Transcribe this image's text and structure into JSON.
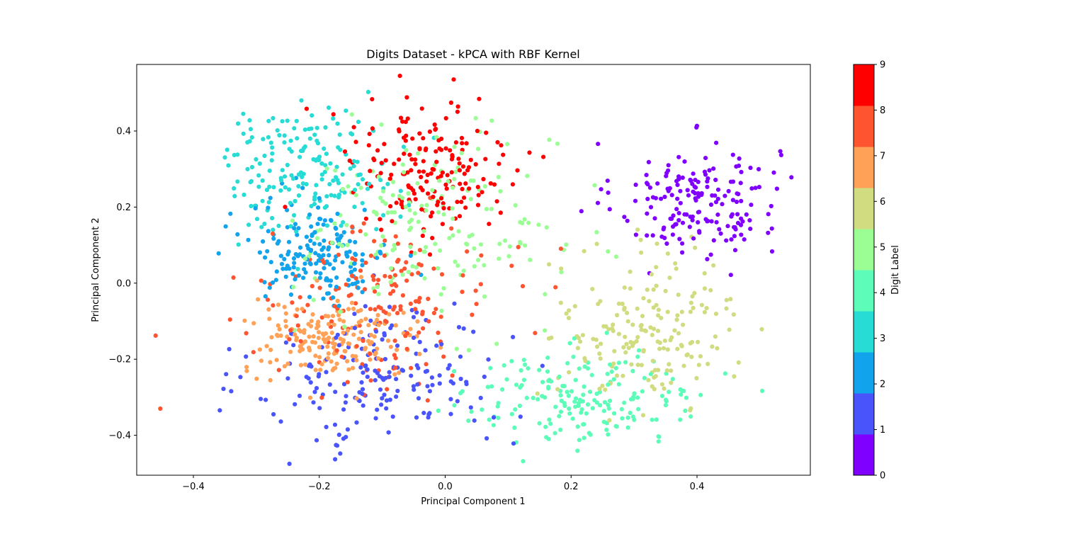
{
  "chart_data": {
    "type": "scatter",
    "title": "Digits Dataset - kPCA with RBF Kernel",
    "xlabel": "Principal Component 1",
    "ylabel": "Principal Component 2",
    "xlim": [
      -0.49,
      0.58
    ],
    "ylim": [
      -0.505,
      0.575
    ],
    "xticks": [
      -0.4,
      -0.2,
      0.0,
      0.2,
      0.4
    ],
    "xtick_labels": [
      "−0.4",
      "−0.2",
      "0.0",
      "0.2",
      "0.4"
    ],
    "yticks": [
      -0.4,
      -0.2,
      0.0,
      0.2,
      0.4
    ],
    "ytick_labels": [
      "−0.4",
      "−0.2",
      "0.0",
      "0.2",
      "0.4"
    ],
    "grid": false,
    "colorbar": {
      "label": "Digit Label",
      "ticks": [
        0,
        1,
        2,
        3,
        4,
        5,
        6,
        7,
        8,
        9
      ],
      "tick_labels": [
        "0",
        "1",
        "2",
        "3",
        "4",
        "5",
        "6",
        "7",
        "8",
        "9"
      ],
      "range": [
        0,
        9
      ],
      "colors": [
        "#8000ff",
        "#4a54fb",
        "#11a3ec",
        "#26dcd5",
        "#5dfcb8",
        "#9afe94",
        "#d1dc80",
        "#ffa257",
        "#ff5430",
        "#ff0000"
      ]
    },
    "clusters": [
      {
        "label": 0,
        "center": [
          0.4,
          0.22
        ],
        "spread": [
          0.065,
          0.075
        ],
        "count": 180
      },
      {
        "label": 1,
        "center": [
          -0.1,
          -0.25
        ],
        "spread": [
          0.1,
          0.1
        ],
        "count": 182
      },
      {
        "label": 2,
        "center": [
          -0.2,
          0.08
        ],
        "spread": [
          0.055,
          0.065
        ],
        "count": 177
      },
      {
        "label": 3,
        "center": [
          -0.22,
          0.3
        ],
        "spread": [
          0.07,
          0.08
        ],
        "count": 183
      },
      {
        "label": 4,
        "center": [
          0.22,
          -0.3
        ],
        "spread": [
          0.1,
          0.06
        ],
        "count": 181
      },
      {
        "label": 5,
        "center": [
          -0.02,
          0.15
        ],
        "spread": [
          0.1,
          0.12
        ],
        "count": 182
      },
      {
        "label": 6,
        "center": [
          0.32,
          -0.12
        ],
        "spread": [
          0.07,
          0.1
        ],
        "count": 181
      },
      {
        "label": 7,
        "center": [
          -0.18,
          -0.15
        ],
        "spread": [
          0.07,
          0.05
        ],
        "count": 179
      },
      {
        "label": 8,
        "center": [
          -0.1,
          -0.05
        ],
        "spread": [
          0.09,
          0.1
        ],
        "count": 174
      },
      {
        "label": 9,
        "center": [
          -0.03,
          0.3
        ],
        "spread": [
          0.07,
          0.1
        ],
        "count": 180
      }
    ]
  }
}
